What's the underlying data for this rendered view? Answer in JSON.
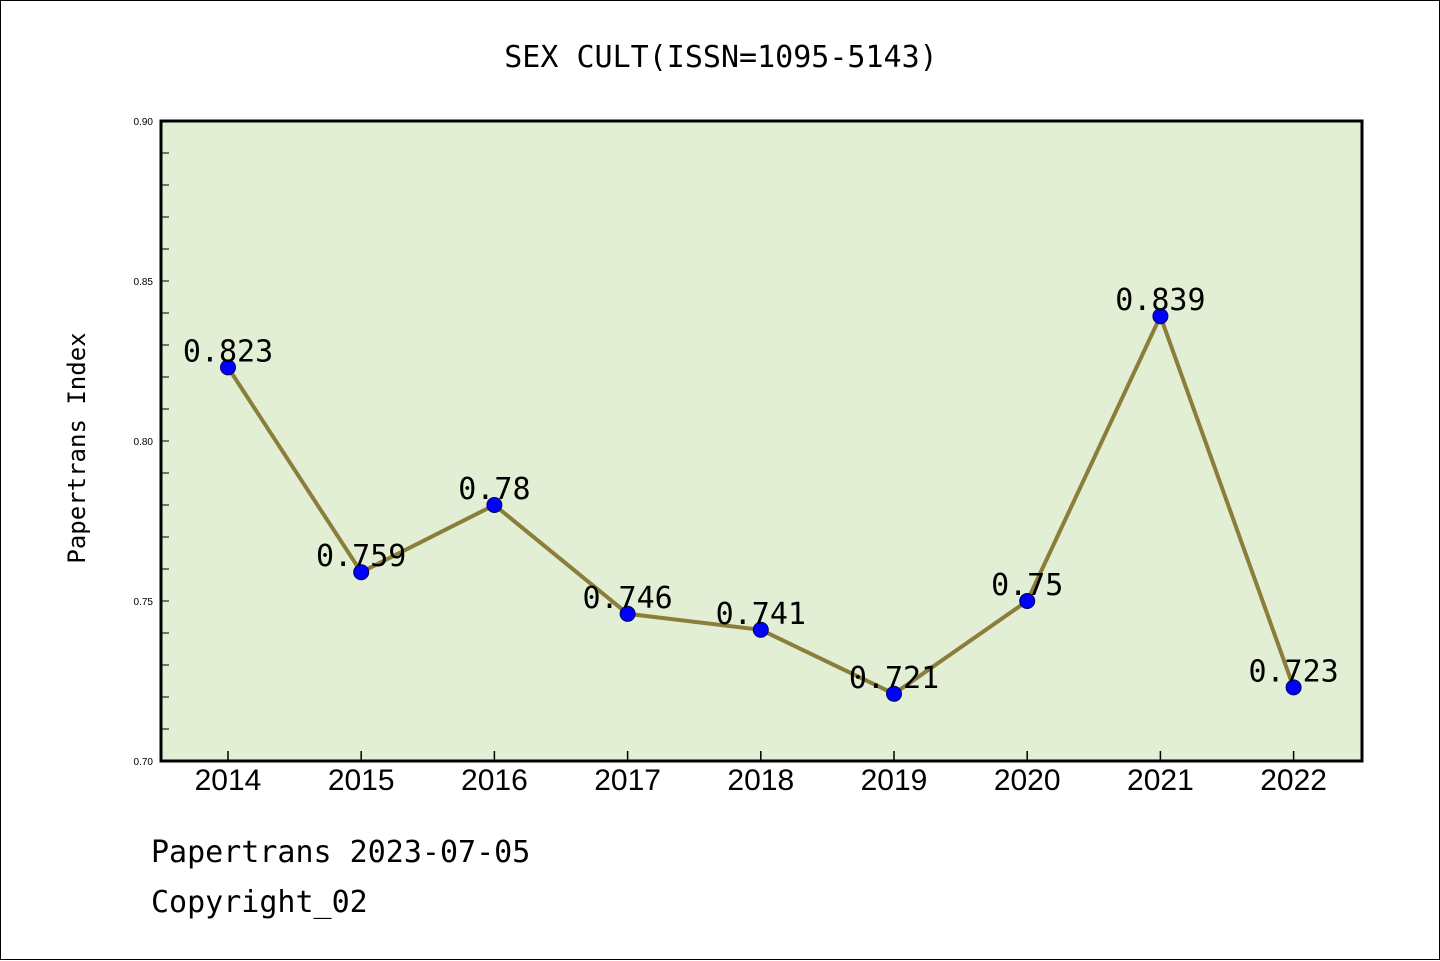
{
  "chart_data": {
    "type": "line",
    "title": "SEX CULT(ISSN=1095-5143)",
    "ylabel": "Papertrans Index",
    "xlabel": "",
    "categories": [
      "2014",
      "2015",
      "2016",
      "2017",
      "2018",
      "2019",
      "2020",
      "2021",
      "2022"
    ],
    "values": [
      0.823,
      0.759,
      0.78,
      0.746,
      0.741,
      0.721,
      0.75,
      0.839,
      0.723
    ],
    "data_labels": [
      "0.823",
      "0.759",
      "0.78",
      "0.746",
      "0.741",
      "0.721",
      "0.75",
      "0.839",
      "0.723"
    ],
    "ylim": [
      0.7,
      0.9
    ],
    "yticks": [
      "0.70",
      "0.75",
      "0.80",
      "0.85",
      "0.90"
    ],
    "grid": false,
    "colors": {
      "plot_background": "#e2efd4",
      "line": "#8b7d3a",
      "marker": "#0000ff",
      "marker_edge": "#000066"
    }
  },
  "footer": {
    "line1": "Papertrans 2023-07-05",
    "line2": "Copyright_02"
  }
}
